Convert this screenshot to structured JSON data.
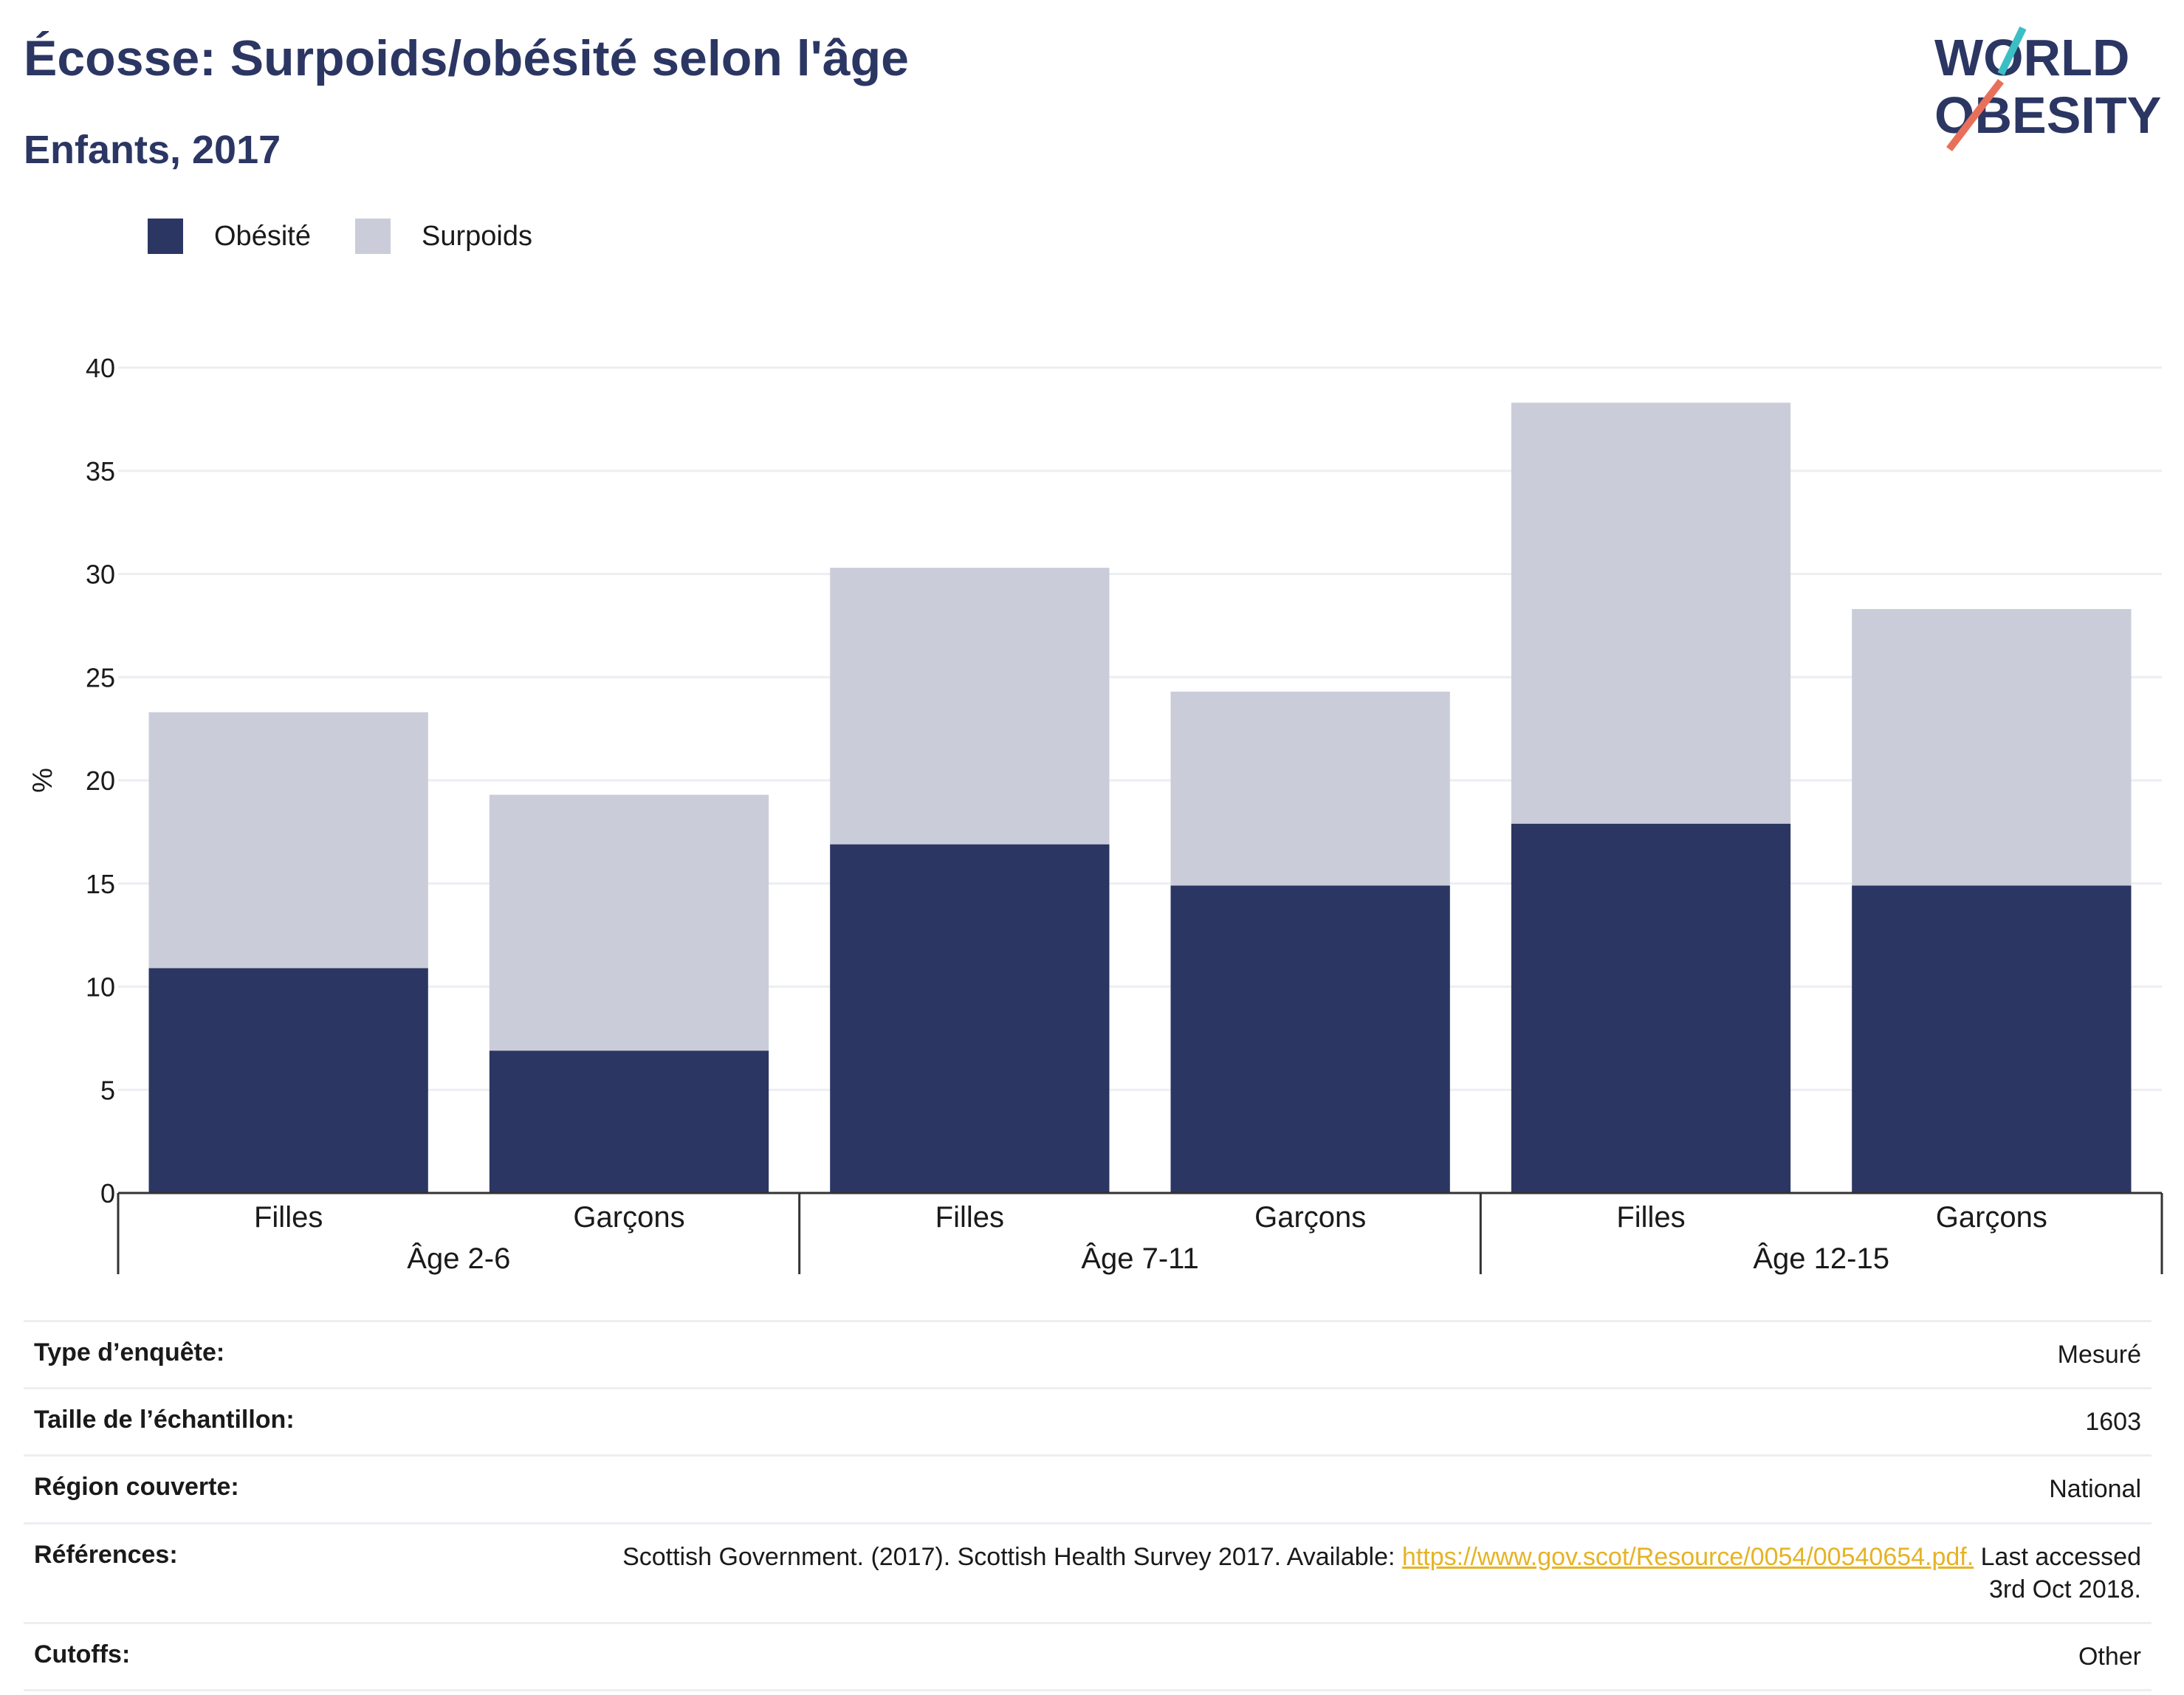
{
  "title": "Écosse: Surpoids/obésité selon l'âge",
  "subtitle": "Enfants, 2017",
  "logo": {
    "line1": "WORLD",
    "line2": "OBESITY"
  },
  "colors": {
    "obesite": "#2b3663",
    "surpoids": "#cacdd9",
    "title": "#2b3663",
    "link": "#e6b325",
    "logo_teal": "#3bbfc4",
    "logo_red": "#e8705a"
  },
  "chart_data": {
    "type": "bar",
    "stacked": true,
    "ylabel": "%",
    "ylim": [
      0,
      40
    ],
    "yticks": [
      "0",
      "5",
      "10",
      "15",
      "20",
      "25",
      "30",
      "35",
      "40"
    ],
    "categories": [
      "Filles",
      "Garçons",
      "Filles",
      "Garçons",
      "Filles",
      "Garçons"
    ],
    "groups": [
      {
        "label": "Âge 2-6",
        "span": 2
      },
      {
        "label": "Âge 7-11",
        "span": 2
      },
      {
        "label": "Âge 12-15",
        "span": 2
      }
    ],
    "series": [
      {
        "name": "Obésité",
        "values": [
          10.9,
          6.9,
          16.9,
          14.9,
          17.9,
          14.9
        ]
      },
      {
        "name": "Surpoids",
        "values": [
          12.4,
          12.4,
          13.4,
          9.4,
          20.4,
          13.4
        ]
      }
    ],
    "grid": true,
    "legend": "top-left"
  },
  "info": [
    {
      "key": "Type d’enquête:",
      "value": "Mesuré"
    },
    {
      "key": "Taille de l’échantillon:",
      "value": "1603"
    },
    {
      "key": "Région couverte:",
      "value": "National"
    },
    {
      "key": "Références:",
      "value_pre": "Scottish Government. (2017). Scottish Health Survey 2017. Available: ",
      "link": "https://www.gov.scot/Resource/0054/00540654.pdf.",
      "value_post": " Last accessed 3rd Oct 2018."
    },
    {
      "key": "Cutoffs:",
      "value": "Other"
    }
  ]
}
